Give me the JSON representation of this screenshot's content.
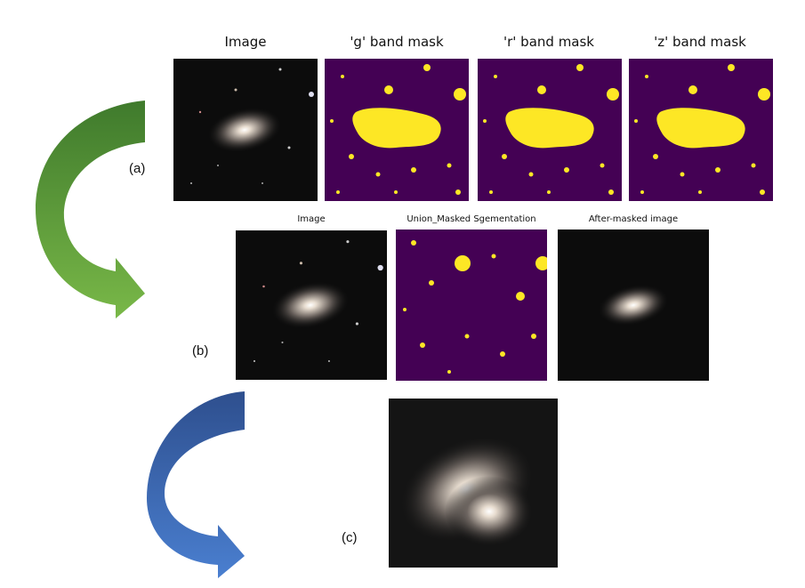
{
  "row_a": {
    "label": "(a)",
    "titles": [
      "Image",
      "'g' band mask",
      "'r' band mask",
      "'z' band mask"
    ]
  },
  "row_b": {
    "label": "(b)",
    "titles": [
      "Image",
      "Union_Masked Sgementation",
      "After-masked image"
    ]
  },
  "row_c": {
    "label": "(c)"
  }
}
